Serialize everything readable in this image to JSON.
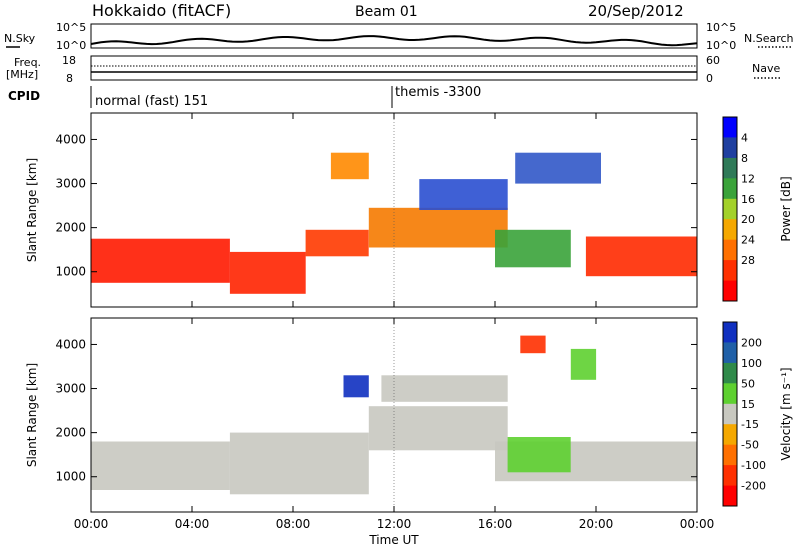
{
  "header": {
    "station": "Hokkaido (fitACF)",
    "beam": "Beam 01",
    "date": "20/Sep/2012"
  },
  "noise_panel": {
    "left_label": "N.Sky",
    "right_label": "N.Search",
    "ticks_left": [
      "10^5",
      "10^0"
    ],
    "ticks_right": [
      "10^5",
      "10^0"
    ]
  },
  "freq_panel": {
    "left_label_1": "Freq.",
    "left_label_2": "[MHz]",
    "right_label": "Nave",
    "ticks_left": [
      "18",
      "8"
    ],
    "ticks_right": [
      "60",
      "0"
    ]
  },
  "cpid": {
    "label": "CPID",
    "modes": [
      {
        "name": "normal (fast) 151",
        "start_hour": 0
      },
      {
        "name": "themis -3300",
        "start_hour": 12
      }
    ]
  },
  "chart_data": [
    {
      "type": "heatmap",
      "name": "power",
      "ylabel": "Slant Range [km]",
      "yticks": [
        "1000",
        "2000",
        "3000",
        "4000"
      ],
      "ylim": [
        200,
        4600
      ],
      "xlim": [
        0,
        24
      ],
      "xticks": [
        "00:00",
        "04:00",
        "08:00",
        "12:00",
        "16:00",
        "20:00",
        "00:00"
      ],
      "colorbar": {
        "label": "Power [dB]",
        "ticks": [
          "4",
          "8",
          "12",
          "16",
          "20",
          "24",
          "28"
        ],
        "colors": [
          "#0000ff",
          "#1f3fa0",
          "#2f7a58",
          "#3aa33a",
          "#a3d12a",
          "#f5a800",
          "#ff7000",
          "#ff3000",
          "#ff0000"
        ]
      },
      "regions": [
        {
          "t0": 0.0,
          "t1": 5.5,
          "r0": 750,
          "r1": 1750,
          "color": "#ff1a00"
        },
        {
          "t0": 5.5,
          "t1": 8.5,
          "r0": 500,
          "r1": 1450,
          "color": "#ff2400"
        },
        {
          "t0": 8.5,
          "t1": 11.0,
          "r0": 1350,
          "r1": 1950,
          "color": "#ff3a00"
        },
        {
          "t0": 11.0,
          "t1": 16.5,
          "r0": 1550,
          "r1": 2450,
          "color": "#f57a00"
        },
        {
          "t0": 13.0,
          "t1": 16.5,
          "r0": 2400,
          "r1": 3100,
          "color": "#2a4fd0"
        },
        {
          "t0": 16.0,
          "t1": 19.0,
          "r0": 1100,
          "r1": 1950,
          "color": "#3aa33a"
        },
        {
          "t0": 16.8,
          "t1": 20.2,
          "r0": 3000,
          "r1": 3700,
          "color": "#3158c8"
        },
        {
          "t0": 19.6,
          "t1": 24.0,
          "r0": 900,
          "r1": 1800,
          "color": "#ff2a00"
        },
        {
          "t0": 9.5,
          "t1": 11.0,
          "r0": 3100,
          "r1": 3700,
          "color": "#ff8a00"
        }
      ]
    },
    {
      "type": "heatmap",
      "name": "velocity",
      "ylabel": "Slant Range [km]",
      "yticks": [
        "1000",
        "2000",
        "3000",
        "4000"
      ],
      "ylim": [
        200,
        4600
      ],
      "xlim": [
        0,
        24
      ],
      "xticks": [
        "00:00",
        "04:00",
        "08:00",
        "12:00",
        "16:00",
        "20:00",
        "00:00"
      ],
      "xlabel": "Time UT",
      "colorbar": {
        "label": "Velocity [m s⁻¹]",
        "ticks": [
          "200",
          "100",
          "50",
          "15",
          "-15",
          "-50",
          "-100",
          "-200"
        ],
        "colors": [
          "#1030c0",
          "#2060a8",
          "#2f8a4a",
          "#5ed030",
          "#c8c8c0",
          "#f5a800",
          "#ff7000",
          "#ff3000",
          "#ff0000"
        ]
      },
      "regions": [
        {
          "t0": 0.0,
          "t1": 5.5,
          "r0": 700,
          "r1": 1800,
          "color": "#c8c8c0"
        },
        {
          "t0": 5.5,
          "t1": 11.0,
          "r0": 600,
          "r1": 2000,
          "color": "#c8c8c0"
        },
        {
          "t0": 11.0,
          "t1": 16.5,
          "r0": 1600,
          "r1": 2600,
          "color": "#c8c8c0"
        },
        {
          "t0": 16.0,
          "t1": 24.0,
          "r0": 900,
          "r1": 1800,
          "color": "#c8c8c0"
        },
        {
          "t0": 16.5,
          "t1": 19.0,
          "r0": 1100,
          "r1": 1900,
          "color": "#5ed030"
        },
        {
          "t0": 11.5,
          "t1": 16.5,
          "r0": 2700,
          "r1": 3300,
          "color": "#c8c8c0"
        },
        {
          "t0": 10.0,
          "t1": 11.0,
          "r0": 2800,
          "r1": 3300,
          "color": "#1030c0"
        },
        {
          "t0": 19.0,
          "t1": 20.0,
          "r0": 3200,
          "r1": 3900,
          "color": "#5ed030"
        },
        {
          "t0": 17.0,
          "t1": 18.0,
          "r0": 3800,
          "r1": 4200,
          "color": "#ff3000"
        }
      ]
    }
  ]
}
